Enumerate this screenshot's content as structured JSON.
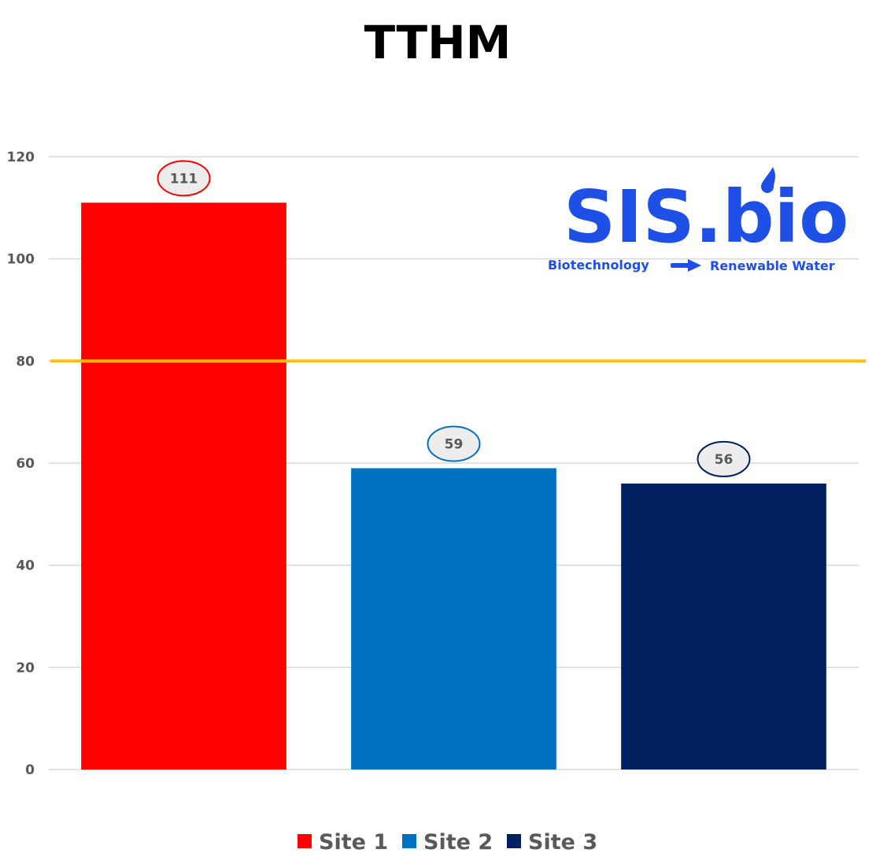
{
  "chart_data": {
    "type": "bar",
    "title": "TTHM",
    "categories": [
      "Site 1",
      "Site 2",
      "Site 3"
    ],
    "values": [
      111,
      59,
      56
    ],
    "data_labels": [
      "111",
      "59",
      "56"
    ],
    "colors": [
      "#FF0000",
      "#0070C0",
      "#002060"
    ],
    "ylim": [
      0,
      120
    ],
    "yticks": [
      0,
      20,
      40,
      60,
      80,
      100,
      120
    ],
    "reference_line": {
      "value": 80,
      "color": "#FFC000"
    },
    "legend": [
      "Site 1",
      "Site 2",
      "Site 3"
    ],
    "legend_position": "bottom",
    "grid": true,
    "xlabel": "",
    "ylabel": ""
  },
  "logo": {
    "text": "SIS.bio",
    "tagline_left": "Biotechnology",
    "tagline_right": "Renewable Water",
    "color": "#1E4FE6"
  }
}
